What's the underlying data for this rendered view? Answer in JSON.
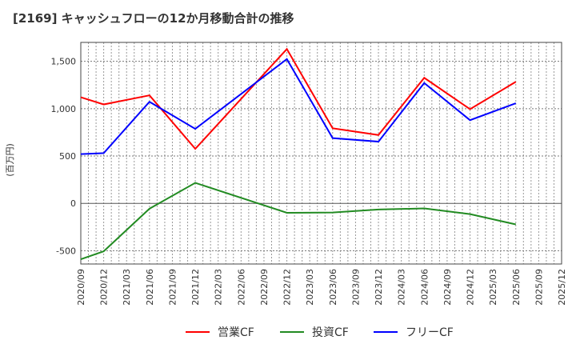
{
  "chart_data": {
    "type": "line",
    "title": "[2169]  キャッシュフローの12か月移動合計の推移",
    "xlabel": "",
    "ylabel": "(百万円)",
    "ylim": [
      -640,
      1700
    ],
    "yticks": [
      -500,
      0,
      500,
      1000,
      1500
    ],
    "ytick_labels": [
      "-500",
      "0",
      "500",
      "1,000",
      "1,500"
    ],
    "categories": [
      "2020/09",
      "2020/12",
      "2021/03",
      "2021/06",
      "2021/09",
      "2021/12",
      "2022/03",
      "2022/06",
      "2022/09",
      "2022/12",
      "2023/03",
      "2023/06",
      "2023/09",
      "2023/12",
      "2024/03",
      "2024/06",
      "2024/09",
      "2024/12",
      "2025/03",
      "2025/06",
      "2025/09",
      "2025/12"
    ],
    "grid": true,
    "legend_position": "bottom",
    "series": [
      {
        "name": "営業CF",
        "color": "#ff0000",
        "values": [
          1121,
          1045,
          null,
          1141,
          null,
          576,
          null,
          null,
          null,
          1630,
          null,
          793,
          null,
          722,
          null,
          1326,
          null,
          995,
          null,
          1284,
          null,
          null
        ]
      },
      {
        "name": "投資CF",
        "color": "#228b22",
        "values": [
          -590,
          -506,
          null,
          -56,
          null,
          217,
          null,
          null,
          null,
          -99,
          null,
          -96,
          null,
          -65,
          null,
          -53,
          null,
          -113,
          null,
          -222,
          null,
          null
        ]
      },
      {
        "name": "フリーCF",
        "color": "#0000ff",
        "values": [
          520,
          531,
          null,
          1073,
          null,
          787,
          null,
          null,
          null,
          1524,
          null,
          689,
          null,
          652,
          null,
          1271,
          null,
          879,
          null,
          1057,
          null,
          null
        ]
      }
    ]
  }
}
